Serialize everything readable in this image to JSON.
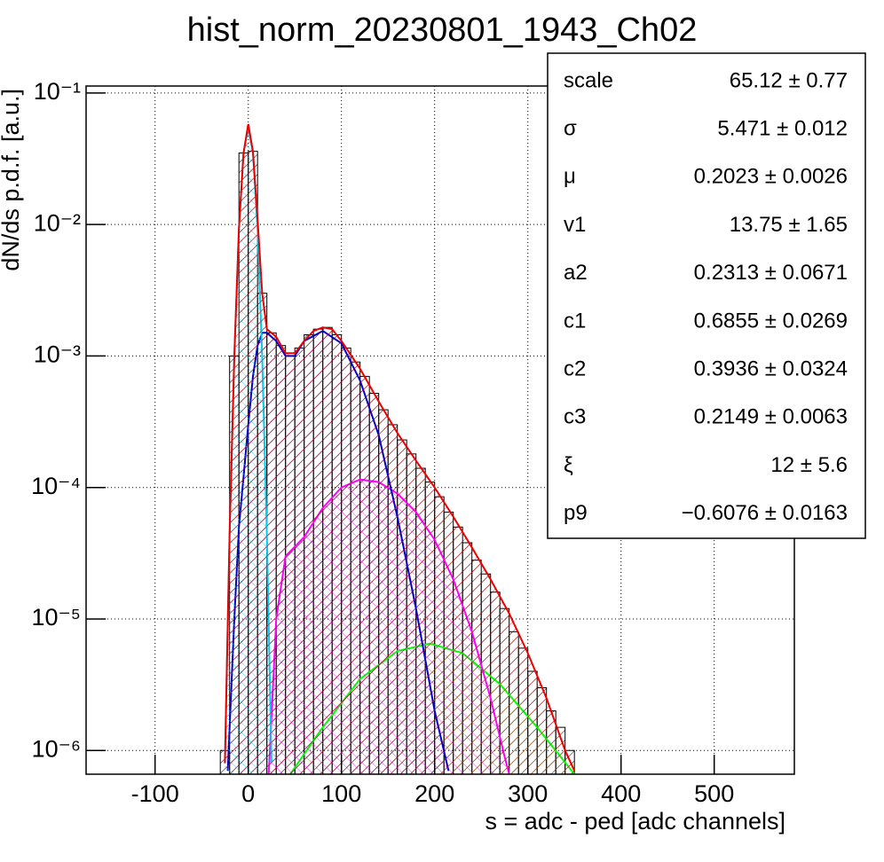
{
  "chart_data": {
    "type": "histogram",
    "title": "hist_norm_20230801_1943_Ch02",
    "x_label": "s = adc - ped [adc channels]",
    "y_label": "dN/ds p.d.f. [a.u.]",
    "xlim": [
      -174,
      586
    ],
    "ylim": [
      6.6e-07,
      0.113
    ],
    "yscale": "log",
    "grid": true,
    "xticks": [
      -100,
      0,
      100,
      200,
      300,
      400,
      500
    ],
    "yticks": [
      {
        "value": 0.1,
        "label": "10⁻¹"
      },
      {
        "value": 0.01,
        "label": "10⁻²"
      },
      {
        "value": 0.001,
        "label": "10⁻³"
      },
      {
        "value": 0.0001,
        "label": "10⁻⁴"
      },
      {
        "value": 1e-05,
        "label": "10⁻⁵"
      },
      {
        "value": 1e-06,
        "label": "10⁻⁶"
      }
    ],
    "color": "#000000",
    "bins": [
      -30,
      -20,
      -10,
      0,
      10,
      20,
      30,
      40,
      50,
      60,
      70,
      80,
      90,
      100,
      110,
      120,
      130,
      140,
      150,
      160,
      170,
      180,
      190,
      200,
      210,
      220,
      230,
      240,
      250,
      260,
      270,
      280,
      290,
      300,
      310,
      320,
      330,
      340,
      350
    ],
    "values": [
      1e-06,
      0.001,
      0.035,
      0.036,
      0.003,
      0.0015,
      0.0012,
      0.001,
      0.00115,
      0.00145,
      0.0016,
      0.00165,
      0.00145,
      0.00115,
      0.0009,
      0.0007,
      0.00052,
      0.00039,
      0.0003,
      0.00023,
      0.00018,
      0.00014,
      0.00011,
      8.5e-05,
      6.5e-05,
      5e-05,
      3.8e-05,
      2.8e-05,
      2.2e-05,
      1.6e-05,
      1.2e-05,
      8e-06,
      6e-06,
      4e-06,
      3e-06,
      2e-06,
      1.5e-06,
      1e-06
    ],
    "curves": [
      {
        "color": "#00ff00",
        "x": [
          45,
          80,
          120,
          160,
          195,
          230,
          270,
          310,
          350
        ],
        "values": [
          6.6e-07,
          1.5e-06,
          3.5e-06,
          5.7e-06,
          6.5e-06,
          5.5e-06,
          3.2e-06,
          1.5e-06,
          6.6e-07
        ]
      },
      {
        "color": "#ff00ff",
        "x": [
          22,
          30,
          40,
          60,
          80,
          100,
          120,
          140,
          160,
          180,
          200,
          220,
          240,
          260,
          275,
          280
        ],
        "values": [
          6.6e-07,
          1e-05,
          3e-05,
          4.2e-05,
          7e-05,
          0.0001,
          0.000115,
          0.00011,
          9e-05,
          6.5e-05,
          4e-05,
          2e-05,
          8e-06,
          2.5e-06,
          9e-07,
          6.6e-07
        ]
      },
      {
        "color": "#0000cc",
        "x": [
          -22,
          -15,
          -10,
          -5,
          0,
          5,
          10,
          15,
          20,
          30,
          40,
          50,
          60,
          80,
          100,
          120,
          140,
          160,
          180,
          200,
          215
        ],
        "values": [
          7e-07,
          1e-05,
          5e-05,
          0.00012,
          0.0003,
          0.0007,
          0.0012,
          0.0015,
          0.0015,
          0.0013,
          0.001,
          0.001,
          0.0013,
          0.00155,
          0.00125,
          0.00065,
          0.00025,
          6e-05,
          1.2e-05,
          2e-06,
          7e-07
        ]
      },
      {
        "color": "#00ccee",
        "x": [
          -25,
          -20,
          -15,
          -10,
          -5,
          0,
          5,
          10,
          15,
          20,
          25
        ],
        "values": [
          8.1e-07,
          4.4e-05,
          0.001,
          0.0093,
          0.035,
          0.055,
          0.035,
          0.0093,
          0.001,
          4.4e-05,
          8.1e-07
        ]
      },
      {
        "color": "#ee0000",
        "x": [
          -25,
          -20,
          -15,
          -10,
          -5,
          0,
          5,
          10,
          15,
          20,
          30,
          40,
          50,
          60,
          70,
          80,
          90,
          100,
          120,
          140,
          160,
          180,
          200,
          220,
          240,
          260,
          280,
          300,
          320,
          340,
          350
        ],
        "values": [
          8e-07,
          4.5e-05,
          0.001,
          0.0093,
          0.035,
          0.058,
          0.036,
          0.011,
          0.003,
          0.0016,
          0.0014,
          0.00105,
          0.00105,
          0.0013,
          0.00155,
          0.00165,
          0.0016,
          0.0013,
          0.0008,
          0.00045,
          0.00026,
          0.00016,
          0.0001,
          6e-05,
          3.5e-05,
          2e-05,
          1.1e-05,
          5.5e-06,
          2.5e-06,
          1e-06,
          7e-07
        ]
      }
    ],
    "stats": [
      {
        "label": "scale",
        "value": "65.12 ± 0.77"
      },
      {
        "label": "σ",
        "value": "5.471 ± 0.012"
      },
      {
        "label": "μ",
        "value": "0.2023 ± 0.0026"
      },
      {
        "label": "v1",
        "value": "13.75 ± 1.65"
      },
      {
        "label": "a2",
        "value": "0.2313 ± 0.0671"
      },
      {
        "label": "c1",
        "value": "0.6855 ± 0.0269"
      },
      {
        "label": "c2",
        "value": "0.3936 ± 0.0324"
      },
      {
        "label": "c3",
        "value": "0.2149 ± 0.0063"
      },
      {
        "label": "ξ",
        "value": "12 ± 5.6"
      },
      {
        "label": "p9",
        "value": "−0.6076 ± 0.0163"
      }
    ]
  }
}
